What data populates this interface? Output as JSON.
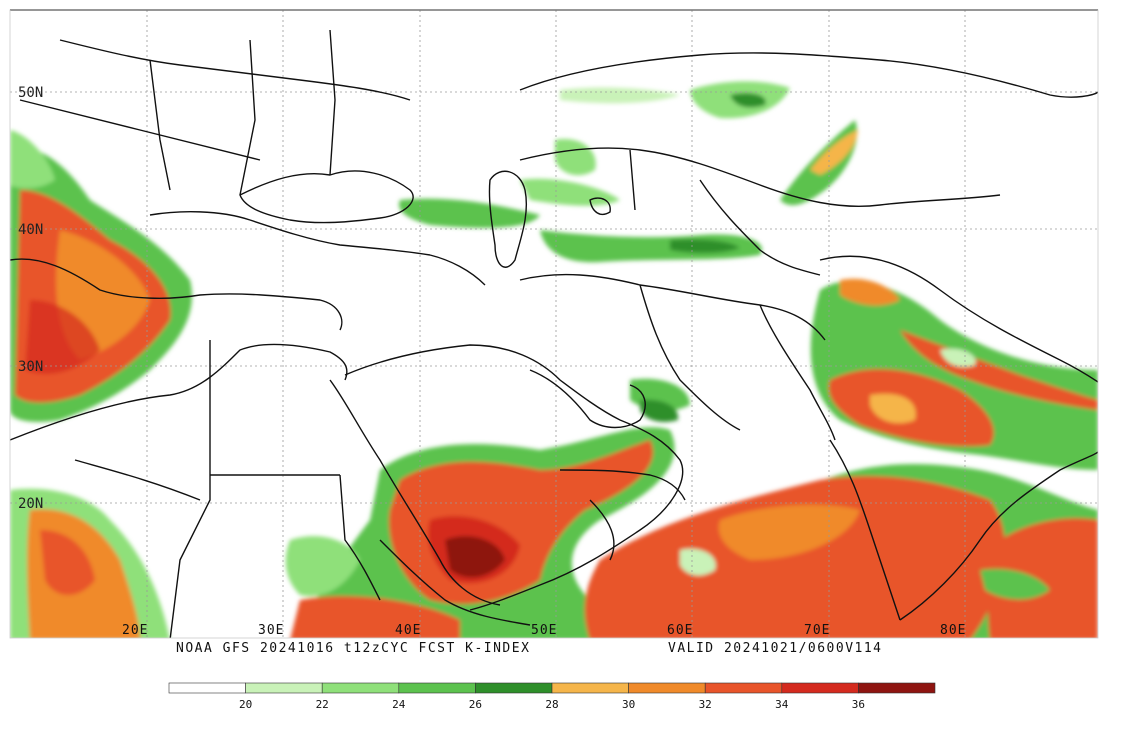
{
  "map": {
    "title": "NOAA GFS 20241016 t12zCYC FCST K-INDEX",
    "valid": "VALID 20241021/0600V114",
    "lat_labels": [
      "50N",
      "40N",
      "30N",
      "20N"
    ],
    "lon_labels": [
      "20E",
      "30E",
      "40E",
      "50E",
      "60E",
      "70E",
      "80E"
    ],
    "colors": {
      "c20": "#ffffff",
      "c22": "#c9f2b8",
      "c24": "#8fe07a",
      "c26": "#5cc24e",
      "c28": "#2e8f2a",
      "c30": "#f5b54a",
      "c32": "#f08a2a",
      "c34": "#e8542a",
      "c36": "#d42a1e",
      "c38": "#8e1410",
      "coast": "#111111",
      "grid": "#9a9a9a"
    }
  },
  "legend": {
    "ticks": [
      "20",
      "22",
      "24",
      "26",
      "28",
      "30",
      "32",
      "34",
      "36"
    ],
    "colors": [
      "#ffffff",
      "#c9f2b8",
      "#8fe07a",
      "#5cc24e",
      "#2e8f2a",
      "#f5b54a",
      "#f08a2a",
      "#e8542a",
      "#d42a1e",
      "#8e1410"
    ]
  }
}
